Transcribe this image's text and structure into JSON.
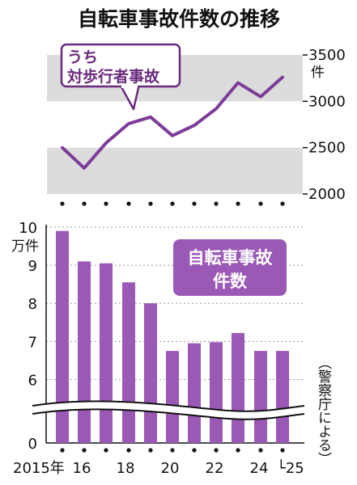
{
  "title": "自転車事故件数の推移",
  "top_chart": {
    "callout": [
      "うち",
      "対歩行者事故"
    ],
    "unit": "件",
    "y_ticks": [
      "3500",
      "3000",
      "2500",
      "2000"
    ],
    "colors": {
      "line": "#7d3c98",
      "band": "#dcdcdc"
    }
  },
  "bottom_chart": {
    "unit": "万件",
    "y_ticks": [
      "10",
      "9",
      "8",
      "7",
      "6",
      "0"
    ],
    "legend": [
      "自転車事故",
      "件数"
    ],
    "source": "（警察庁による）",
    "x_labels": {
      "first": "2015年",
      "l16": "16",
      "l18": "18",
      "l20": "20",
      "l22": "22",
      "l24": "24",
      "last": "└25"
    },
    "colors": {
      "bar": "#9b59b6",
      "legend_bg": "#9b59b6",
      "grid": "#999999"
    }
  },
  "chart_data": [
    {
      "type": "line",
      "title": "うち対歩行者事故",
      "x": [
        "2015",
        "2016",
        "2017",
        "2018",
        "2019",
        "2020",
        "2021",
        "2022",
        "2023",
        "2024",
        "2025"
      ],
      "series": [
        {
          "name": "対歩行者事故",
          "values": [
            2500,
            2280,
            2550,
            2760,
            2830,
            2630,
            2740,
            2920,
            3200,
            3050,
            3260
          ]
        }
      ],
      "ylabel": "件",
      "ylim": [
        2000,
        3500
      ],
      "bands": [
        [
          2000,
          2500
        ],
        [
          3000,
          3500
        ]
      ]
    },
    {
      "type": "bar",
      "title": "自転車事故件数",
      "categories": [
        "2015",
        "2016",
        "2017",
        "2018",
        "2019",
        "2020",
        "2021",
        "2022",
        "2023",
        "2024",
        "2025"
      ],
      "values": [
        9.9,
        9.1,
        9.05,
        8.55,
        8.0,
        6.75,
        6.95,
        6.98,
        7.22,
        6.75,
        6.75
      ],
      "ylabel": "万件",
      "ylim": [
        0,
        10
      ],
      "axis_break": [
        0,
        5.5
      ]
    }
  ]
}
